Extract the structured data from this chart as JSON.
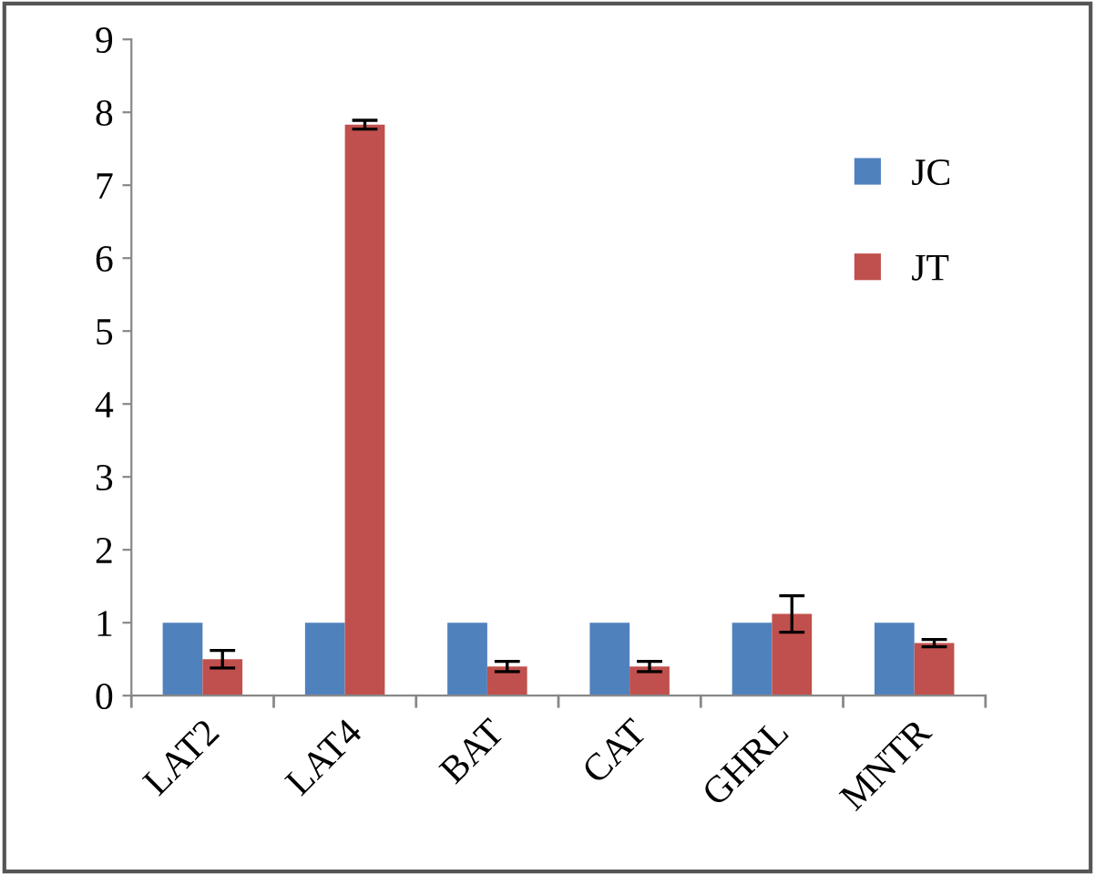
{
  "chart_data": {
    "type": "bar",
    "categories": [
      "LAT2",
      "LAT4",
      "BAT",
      "CAT",
      "GHRL",
      "MNTR"
    ],
    "series": [
      {
        "name": "JC",
        "color": "#4f81bd",
        "values": [
          1,
          1,
          1,
          1,
          1,
          1
        ]
      },
      {
        "name": "JT",
        "color": "#c0504d",
        "values": [
          0.5,
          7.83,
          0.4,
          0.4,
          1.12,
          0.72
        ],
        "errors": [
          0.12,
          0.06,
          0.07,
          0.07,
          0.25,
          0.05
        ]
      }
    ],
    "ylim": [
      0,
      9
    ],
    "yticks": [
      0,
      1,
      2,
      3,
      4,
      5,
      6,
      7,
      8,
      9
    ],
    "grid": false,
    "legend": "right"
  }
}
